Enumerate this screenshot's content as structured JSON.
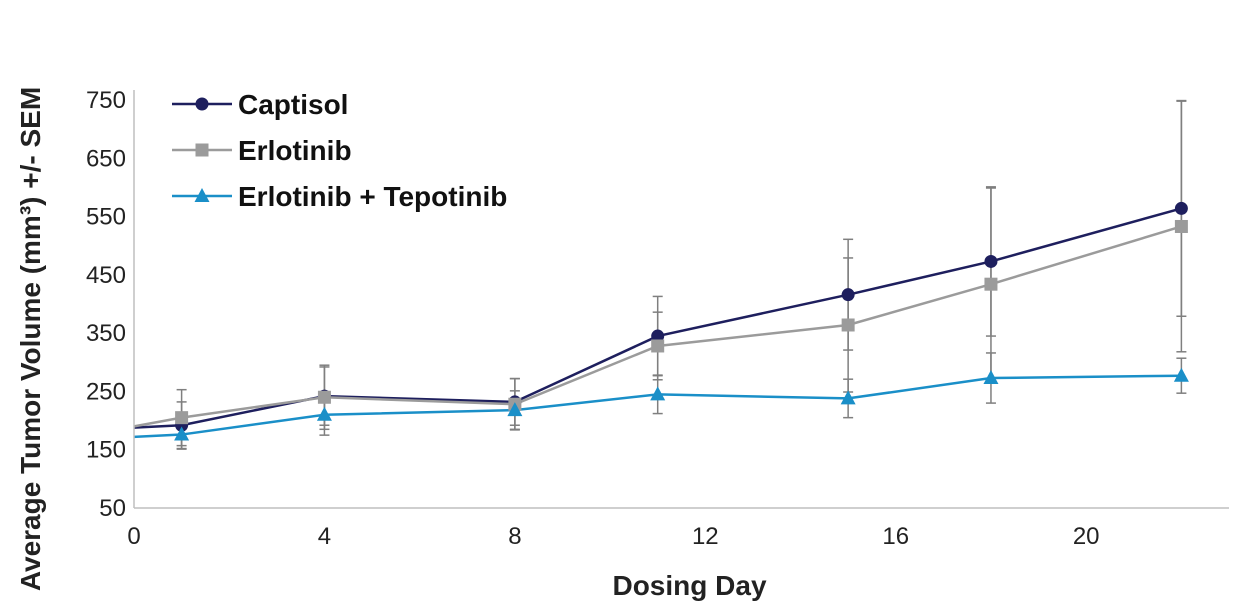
{
  "chart_data": {
    "type": "line",
    "xlabel": "Dosing Day",
    "ylabel": "Average Tumor Volume (mm³) +/- SEM",
    "xlim": [
      0,
      23
    ],
    "ylim": [
      50,
      750
    ],
    "xticks": [
      0,
      4,
      8,
      12,
      16,
      20
    ],
    "yticks": [
      50,
      150,
      250,
      350,
      450,
      550,
      650,
      750
    ],
    "legend_position": "top-left",
    "grid": false,
    "series": [
      {
        "name": "Captisol",
        "color": "#1e1f5e",
        "marker": "circle",
        "x": [
          0,
          1,
          4,
          8,
          11,
          15,
          18,
          22
        ],
        "y": [
          188,
          192,
          242,
          232,
          345,
          416,
          473,
          564
        ],
        "err": [
          0,
          40,
          50,
          40,
          68,
          95,
          128,
          185
        ]
      },
      {
        "name": "Erlotinib",
        "color": "#9b9b9b",
        "marker": "square",
        "x": [
          0,
          1,
          4,
          8,
          11,
          15,
          18,
          22
        ],
        "y": [
          190,
          205,
          240,
          228,
          328,
          364,
          434,
          533
        ],
        "err": [
          0,
          48,
          55,
          44,
          58,
          115,
          165,
          215
        ]
      },
      {
        "name": "Erlotinib + Tepotinib",
        "color": "#1a8fc8",
        "marker": "triangle",
        "x": [
          0,
          1,
          4,
          8,
          11,
          15,
          18,
          22
        ],
        "y": [
          172,
          176,
          210,
          218,
          245,
          238,
          273,
          277
        ],
        "err": [
          0,
          25,
          35,
          33,
          33,
          33,
          43,
          30
        ]
      }
    ]
  }
}
